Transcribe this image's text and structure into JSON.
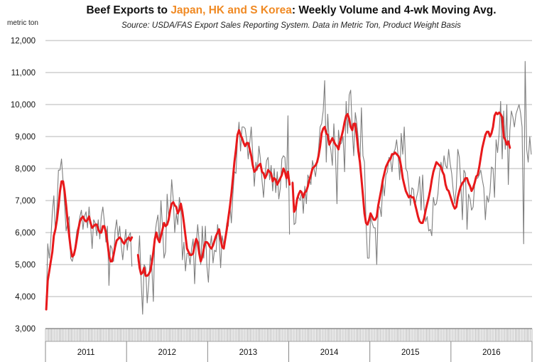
{
  "title": {
    "prefix": "Beef Exports to ",
    "highlight": "Japan, HK and S Korea",
    "suffix": ":  Weekly Volume and 4-wk Moving Avg."
  },
  "subtitle": "Source: USDA/FAS Export Sales Reporting System.  Data in Metric Ton, Product Weight Basis",
  "unit_label": "metric ton",
  "colors": {
    "highlight": "#f08a24",
    "weekly": "#7f7f7f",
    "moving_avg": "#e8191b",
    "grid": "#b4b4b4"
  },
  "chart_data": {
    "type": "line",
    "title": "Beef Exports to Japan, HK and S Korea:  Weekly Volume and 4-wk Moving Avg.",
    "ylabel": "metric ton",
    "ylim": [
      3000,
      12000
    ],
    "yticks": [
      3000,
      4000,
      5000,
      6000,
      7000,
      8000,
      9000,
      10000,
      11000,
      12000
    ],
    "ytick_labels": [
      "3,000",
      "4,000",
      "5,000",
      "6,000",
      "7,000",
      "8,000",
      "9,000",
      "10,000",
      "11,000",
      "12,000"
    ],
    "x_unit": "week",
    "years": [
      "2011",
      "2012",
      "2013",
      "2014",
      "2015",
      "2016"
    ],
    "grid": true,
    "series": [
      {
        "name": "Weekly Volume",
        "style": "thin gray",
        "x_start": "2011-01",
        "values": [
          3650,
          5650,
          5200,
          5750,
          6650,
          7150,
          6000,
          6800,
          7950,
          7950,
          8300,
          7600,
          6900,
          6050,
          6300,
          6500,
          5200,
          5100,
          5300,
          5650,
          6050,
          6200,
          6500,
          6700,
          6100,
          6500,
          6650,
          6150,
          6800,
          6250,
          5500,
          6400,
          6300,
          5900,
          6400,
          5800,
          6500,
          6800,
          6350,
          5700,
          6200,
          4350,
          5600,
          5500,
          5100,
          6050,
          6400,
          5850,
          6200,
          5600,
          5150,
          5650,
          6100,
          5450,
          5900,
          6000,
          4950,
          null,
          null,
          null,
          5100,
          5900,
          4550,
          3450,
          5000,
          4900,
          3800,
          4400,
          5300,
          4950,
          3850,
          5900,
          6300,
          6550,
          5700,
          7000,
          6150,
          5200,
          5400,
          7200,
          6500,
          6700,
          7650,
          7050,
          6000,
          6600,
          6250,
          7100,
          6800,
          5150,
          5700,
          4800,
          5350,
          5350,
          5000,
          5500,
          5800,
          4400,
          5600,
          6250,
          5700,
          5000,
          6200,
          5200,
          6200,
          4950,
          4450,
          5550,
          5900,
          5050,
          5450,
          5400,
          6250,
          5800,
          4900,
          5900,
          5600,
          5900,
          6300,
          6200,
          6900,
          6300,
          7200,
          7900,
          7850,
          8900,
          9450,
          8550,
          9300,
          9300,
          9250,
          8900,
          8300,
          8800,
          9300,
          8400,
          7450,
          8200,
          7950,
          8700,
          8300,
          7650,
          7100,
          7800,
          8250,
          8350,
          7650,
          8100,
          7300,
          8000,
          7250,
          7900,
          7050,
          7400,
          8300,
          8400,
          8350,
          7400,
          9650,
          5950,
          null,
          7600,
          6250,
          6300,
          7050,
          7100,
          7000,
          7300,
          6600,
          7450,
          6900,
          7800,
          7650,
          7500,
          8250,
          8000,
          7750,
          8200,
          8600,
          9300,
          9400,
          9800,
          10750,
          8200,
          9700,
          8800,
          8600,
          8100,
          9400,
          8500,
          6900,
          9200,
          8750,
          8800,
          9000,
          7900,
          10100,
          9100,
          10300,
          10450,
          9200,
          8400,
          9750,
          9400,
          8900,
          8100,
          9900,
          8400,
          8200,
          6300,
          5200,
          5200,
          6500,
          6300,
          6150,
          6150,
          5000,
          6800,
          6800,
          6500,
          7600,
          7150,
          7800,
          7900,
          8350,
          8300,
          7900,
          8500,
          8600,
          8900,
          8400,
          7650,
          9100,
          8450,
          9300,
          8000,
          7900,
          7450,
          6850,
          7400,
          7350,
          6800,
          7100,
          7300,
          7750,
          6700,
          7800,
          6750,
          6350,
          6500,
          6050,
          6100,
          5900,
          7100,
          6850,
          6900,
          7200,
          7850,
          8200,
          7900,
          8400,
          8100,
          8000,
          8600,
          8150,
          7850,
          7300,
          6900,
          7400,
          8600,
          8350,
          7500,
          6400,
          7950,
          7850,
          6100,
          7200,
          7050,
          6700,
          6800,
          7500,
          7700,
          7700,
          7800,
          7950,
          7650,
          7400,
          6400,
          7150,
          6950,
          7250,
          8050,
          8000,
          7100,
          8900,
          8500,
          9100,
          10100,
          8300,
          9800,
          8600,
          10000,
          7500,
          9200,
          9800,
          9600,
          9300,
          9700,
          9850,
          10000,
          9750,
          9300,
          5650,
          11350,
          8600,
          8200,
          9000,
          8450
        ],
        "end": "2016-11"
      },
      {
        "name": "4-wk Moving Avg.",
        "style": "thick red",
        "x_start": "2011-01",
        "values": [
          3600,
          4500,
          4800,
          5100,
          5400,
          5900,
          6100,
          6400,
          6800,
          7300,
          7600,
          7600,
          7300,
          6850,
          6350,
          5900,
          5500,
          5250,
          5300,
          5500,
          5800,
          6100,
          6350,
          6450,
          6500,
          6400,
          6350,
          6400,
          6500,
          6300,
          6150,
          6200,
          6250,
          6250,
          6100,
          6000,
          6000,
          6200,
          6200,
          6000,
          5700,
          5300,
          5100,
          5100,
          5300,
          5550,
          5750,
          5800,
          5850,
          5800,
          5700,
          5650,
          5750,
          5800,
          5850,
          5750,
          5850,
          null,
          null,
          null,
          5300,
          4900,
          4700,
          4750,
          4900,
          4650,
          4650,
          4700,
          4800,
          5050,
          5400,
          5800,
          6000,
          5800,
          5700,
          5900,
          6100,
          6300,
          6200,
          6250,
          6400,
          6700,
          6900,
          6950,
          6850,
          6800,
          6600,
          6700,
          6900,
          6650,
          6300,
          5900,
          5500,
          5400,
          5300,
          5300,
          5350,
          5600,
          5800,
          5700,
          5350,
          5100,
          5250,
          5500,
          5700,
          5700,
          5650,
          5550,
          5500,
          5600,
          5750,
          5900,
          6000,
          6100,
          5800,
          5550,
          5500,
          5800,
          6100,
          6450,
          6800,
          7200,
          7700,
          8200,
          8600,
          9050,
          9200,
          9050,
          8950,
          8800,
          8700,
          8800,
          8800,
          8600,
          8400,
          8100,
          7900,
          7950,
          8050,
          8100,
          8150,
          7900,
          7850,
          7700,
          7800,
          7950,
          7900,
          7850,
          7600,
          7700,
          7650,
          7500,
          7600,
          7700,
          7800,
          8000,
          7900,
          7700,
          7900,
          7500,
          null,
          7550,
          6650,
          6750,
          7050,
          7200,
          7300,
          7250,
          7100,
          7250,
          7300,
          7450,
          7650,
          7800,
          8000,
          8050,
          8100,
          8200,
          8400,
          8700,
          9100,
          9250,
          9300,
          9100,
          9050,
          8750,
          8850,
          8950,
          8850,
          8750,
          8700,
          8600,
          8850,
          9000,
          9200,
          9450,
          9650,
          9700,
          9550,
          9300,
          9200,
          9400,
          9400,
          9000,
          8550,
          8200,
          7700,
          7150,
          6600,
          6300,
          6250,
          6400,
          6600,
          6500,
          6400,
          6400,
          6500,
          6850,
          7100,
          7350,
          7650,
          7850,
          8050,
          8150,
          8250,
          8300,
          8450,
          8450,
          8500,
          8450,
          8400,
          8300,
          8050,
          7700,
          7500,
          7300,
          7200,
          7100,
          7150,
          7100,
          7100,
          6900,
          6700,
          6500,
          6350,
          6300,
          6300,
          6450,
          6700,
          6900,
          7100,
          7350,
          7650,
          7900,
          8050,
          8200,
          8150,
          8100,
          8050,
          7900,
          7800,
          7500,
          7350,
          7300,
          7150,
          7000,
          6850,
          6750,
          6800,
          7100,
          7300,
          7450,
          7550,
          7600,
          7700,
          7700,
          7550,
          7450,
          7300,
          7400,
          7550,
          7750,
          7800,
          8050,
          8350,
          8650,
          8850,
          9050,
          9150,
          9150,
          9000,
          9100,
          9300,
          9650,
          9750,
          9700,
          9750,
          9700,
          9600,
          9000,
          8900,
          8750,
          8850,
          8650
        ],
        "end": "2016-11"
      }
    ]
  }
}
